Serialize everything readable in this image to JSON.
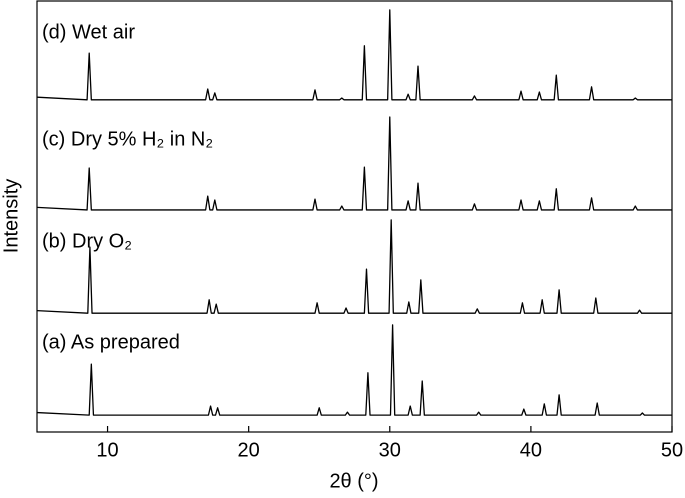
{
  "chart_data": {
    "type": "line",
    "xlabel": "2θ (°)",
    "ylabel": "Intensity",
    "xlim": [
      5,
      50
    ],
    "xticks": [
      10,
      20,
      30,
      40,
      50
    ],
    "ylim": [
      0,
      100
    ],
    "series": [
      {
        "name": "(d) Wet air",
        "color": "#000000",
        "x": [
          5,
          8.55,
          8.7,
          8.85,
          16.95,
          17.1,
          17.25,
          17.45,
          17.6,
          17.75,
          24.55,
          24.7,
          24.85,
          26.45,
          26.6,
          26.75,
          28.05,
          28.2,
          28.35,
          29.85,
          30.0,
          30.15,
          31.15,
          31.3,
          31.45,
          31.85,
          32.0,
          32.15,
          35.85,
          36.0,
          36.15,
          39.15,
          39.3,
          39.45,
          40.45,
          40.6,
          40.75,
          41.65,
          41.8,
          41.95,
          44.15,
          44.3,
          44.45,
          47.25,
          47.4,
          47.55,
          50
        ],
        "values": [
          77.5,
          76.9,
          87.7,
          76.9,
          76.9,
          79.4,
          76.9,
          76.9,
          78.5,
          76.9,
          76.9,
          79.2,
          76.9,
          76.9,
          77.3,
          76.9,
          76.9,
          89.4,
          76.9,
          76.9,
          97.7,
          76.9,
          76.9,
          78.2,
          76.9,
          76.9,
          84.7,
          76.9,
          76.9,
          77.8,
          76.9,
          76.9,
          78.9,
          76.9,
          76.9,
          78.7,
          76.9,
          76.9,
          82.6,
          76.9,
          76.9,
          79.9,
          76.9,
          76.9,
          77.3,
          76.9,
          76.9
        ]
      },
      {
        "name": "(c) Dry 5% H₂ in N₂",
        "color": "#000000",
        "x": [
          5,
          8.55,
          8.7,
          8.85,
          16.95,
          17.1,
          17.25,
          17.45,
          17.6,
          17.75,
          24.55,
          24.7,
          24.85,
          26.45,
          26.6,
          26.75,
          28.05,
          28.2,
          28.35,
          29.85,
          30.0,
          30.15,
          31.15,
          31.3,
          31.45,
          31.85,
          32.0,
          32.15,
          35.85,
          36.0,
          36.15,
          39.15,
          39.3,
          39.45,
          40.45,
          40.6,
          40.75,
          41.65,
          41.8,
          41.95,
          44.15,
          44.3,
          44.45,
          47.25,
          47.4,
          47.55,
          50
        ],
        "values": [
          52.0,
          51.4,
          61.1,
          51.4,
          51.4,
          54.6,
          51.4,
          51.4,
          53.7,
          51.4,
          51.4,
          53.9,
          51.4,
          51.4,
          52.3,
          51.4,
          51.4,
          61.3,
          51.4,
          51.4,
          72.9,
          51.4,
          51.4,
          53.5,
          51.4,
          51.4,
          57.6,
          51.4,
          51.4,
          52.8,
          51.4,
          51.4,
          53.7,
          51.4,
          51.4,
          53.5,
          51.4,
          51.4,
          56.3,
          51.4,
          51.4,
          54.2,
          51.4,
          51.4,
          52.3,
          51.4,
          51.4
        ]
      },
      {
        "name": "(b) Dry O₂",
        "color": "#000000",
        "x": [
          5,
          8.6,
          8.75,
          8.9,
          17.05,
          17.2,
          17.35,
          17.55,
          17.7,
          17.85,
          24.7,
          24.85,
          25.0,
          26.75,
          26.9,
          27.05,
          28.2,
          28.35,
          28.5,
          29.95,
          30.1,
          30.25,
          31.2,
          31.35,
          31.5,
          32.05,
          32.2,
          32.35,
          36.05,
          36.2,
          36.35,
          39.25,
          39.4,
          39.55,
          40.65,
          40.8,
          40.95,
          41.85,
          42.0,
          42.15,
          44.45,
          44.6,
          44.75,
          47.55,
          47.7,
          47.85,
          50
        ],
        "values": [
          28.1,
          27.5,
          42.8,
          27.5,
          27.5,
          30.6,
          27.5,
          27.5,
          29.6,
          27.5,
          27.5,
          29.9,
          27.5,
          27.5,
          28.7,
          27.5,
          27.5,
          37.7,
          27.5,
          27.5,
          49.1,
          27.5,
          27.5,
          30.1,
          27.5,
          27.5,
          35.2,
          27.5,
          27.5,
          28.5,
          27.5,
          27.5,
          29.9,
          27.5,
          27.5,
          30.6,
          27.5,
          27.5,
          32.9,
          27.5,
          27.5,
          31.0,
          27.5,
          27.5,
          28.2,
          27.5,
          27.5
        ]
      },
      {
        "name": "(a) As prepared",
        "color": "#000000",
        "x": [
          5,
          8.7,
          8.85,
          9.0,
          17.15,
          17.3,
          17.45,
          17.65,
          17.8,
          17.95,
          24.85,
          25.0,
          25.15,
          26.85,
          27.0,
          27.15,
          28.3,
          28.45,
          28.6,
          30.05,
          30.2,
          30.35,
          31.3,
          31.45,
          31.6,
          32.15,
          32.3,
          32.45,
          36.15,
          36.3,
          36.45,
          39.35,
          39.5,
          39.65,
          40.8,
          40.95,
          41.1,
          41.85,
          42.0,
          42.15,
          44.55,
          44.7,
          44.85,
          47.75,
          47.9,
          48.05,
          50
        ],
        "values": [
          4.5,
          3.9,
          15.7,
          3.9,
          3.9,
          6.0,
          3.9,
          3.9,
          5.6,
          3.9,
          3.9,
          5.6,
          3.9,
          3.9,
          4.6,
          3.9,
          3.9,
          13.7,
          3.9,
          3.9,
          24.8,
          3.9,
          3.9,
          6.0,
          3.9,
          3.9,
          11.8,
          3.9,
          3.9,
          4.6,
          3.9,
          3.9,
          5.3,
          3.9,
          3.9,
          6.5,
          3.9,
          3.9,
          8.6,
          3.9,
          3.9,
          6.7,
          3.9,
          3.9,
          4.4,
          3.9,
          3.9
        ]
      }
    ]
  }
}
